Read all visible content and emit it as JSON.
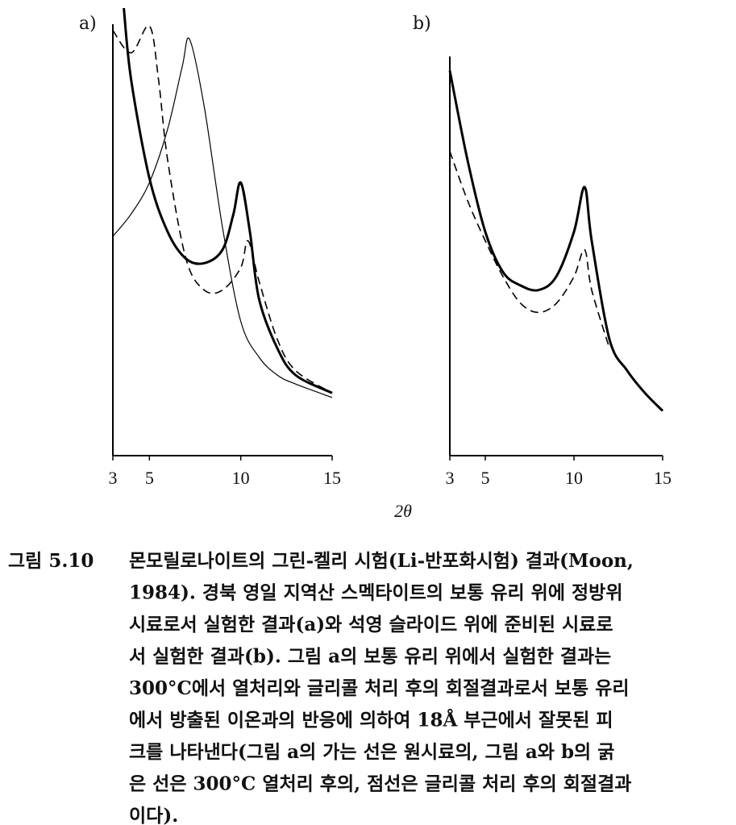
{
  "chart_data": [
    {
      "type": "line",
      "panel_label": "a)",
      "xlim": [
        3,
        15
      ],
      "ylim": [
        0,
        100
      ],
      "xticks": [
        3,
        5,
        10,
        15
      ],
      "series": [
        {
          "color": "#000",
          "line_width": 1.2,
          "dashed": false,
          "x": [
            3,
            4,
            5,
            6,
            6.8,
            7.2,
            8,
            9,
            10,
            11,
            12,
            13,
            15
          ],
          "values": [
            49,
            54,
            61,
            73,
            87,
            93,
            78,
            51,
            30,
            22,
            18,
            16,
            13
          ]
        },
        {
          "color": "#000",
          "line_width": 3,
          "dashed": false,
          "x": [
            3.6,
            4,
            5,
            6,
            7,
            8,
            9,
            9.6,
            10,
            10.5,
            11,
            12,
            13,
            15
          ],
          "values": [
            100,
            84,
            62,
            50,
            44,
            43,
            46,
            54,
            61,
            50,
            35,
            24,
            18,
            14
          ]
        },
        {
          "color": "#000",
          "line_width": 1.6,
          "dashed": true,
          "x": [
            3,
            4,
            5,
            5.5,
            6,
            7,
            8,
            9,
            10,
            10.4,
            11,
            12,
            13,
            15
          ],
          "values": [
            95,
            90,
            96,
            84,
            66,
            44,
            37,
            37,
            42,
            48,
            39,
            26,
            19,
            14
          ]
        }
      ]
    },
    {
      "type": "line",
      "panel_label": "b)",
      "xlim": [
        3,
        15
      ],
      "ylim": [
        0,
        100
      ],
      "xticks": [
        3,
        5,
        10,
        15
      ],
      "series": [
        {
          "color": "#000",
          "line_width": 3,
          "dashed": false,
          "x": [
            3,
            4,
            5,
            6,
            7,
            8,
            9,
            10,
            10.6,
            11,
            12,
            13,
            14,
            15
          ],
          "values": [
            86,
            66,
            50,
            41,
            38,
            37,
            40,
            50,
            60,
            48,
            26,
            19,
            14,
            10
          ]
        },
        {
          "color": "#000",
          "line_width": 1.6,
          "dashed": true,
          "x": [
            3,
            4,
            5,
            6,
            7,
            8,
            9,
            10,
            10.6,
            11,
            12
          ],
          "values": [
            68,
            57,
            48,
            40,
            34,
            32,
            34,
            40,
            46,
            37,
            24
          ]
        }
      ]
    }
  ],
  "figure": {
    "x_label": "2θ",
    "caption_number": "그림 5.10",
    "caption_lines": [
      "몬모릴로나이트의 그린-켈리 시험(Li-반포화시험) 결과(Moon,",
      "1984). 경북 영일 지역산 스멕타이트의 보통 유리 위에 정방위",
      "시료로서 실험한 결과(a)와 석영 슬라이드 위에 준비된 시료로",
      "서 실험한 결과(b). 그림 a의 보통 유리 위에서 실험한 결과는",
      "300°C에서 열처리와 글리콜 처리 후의 회절결과로서 보통 유리",
      "에서 방출된 이온과의 반응에 의하여 18Å 부근에서 잘못된 피",
      "크를 나타낸다(그림 a의 가는 선은 원시료의, 그림 a와 b의 굵",
      "은 선은 300°C 열처리 후의, 점선은 글리콜 처리 후의 회절결과",
      "이다)."
    ]
  }
}
